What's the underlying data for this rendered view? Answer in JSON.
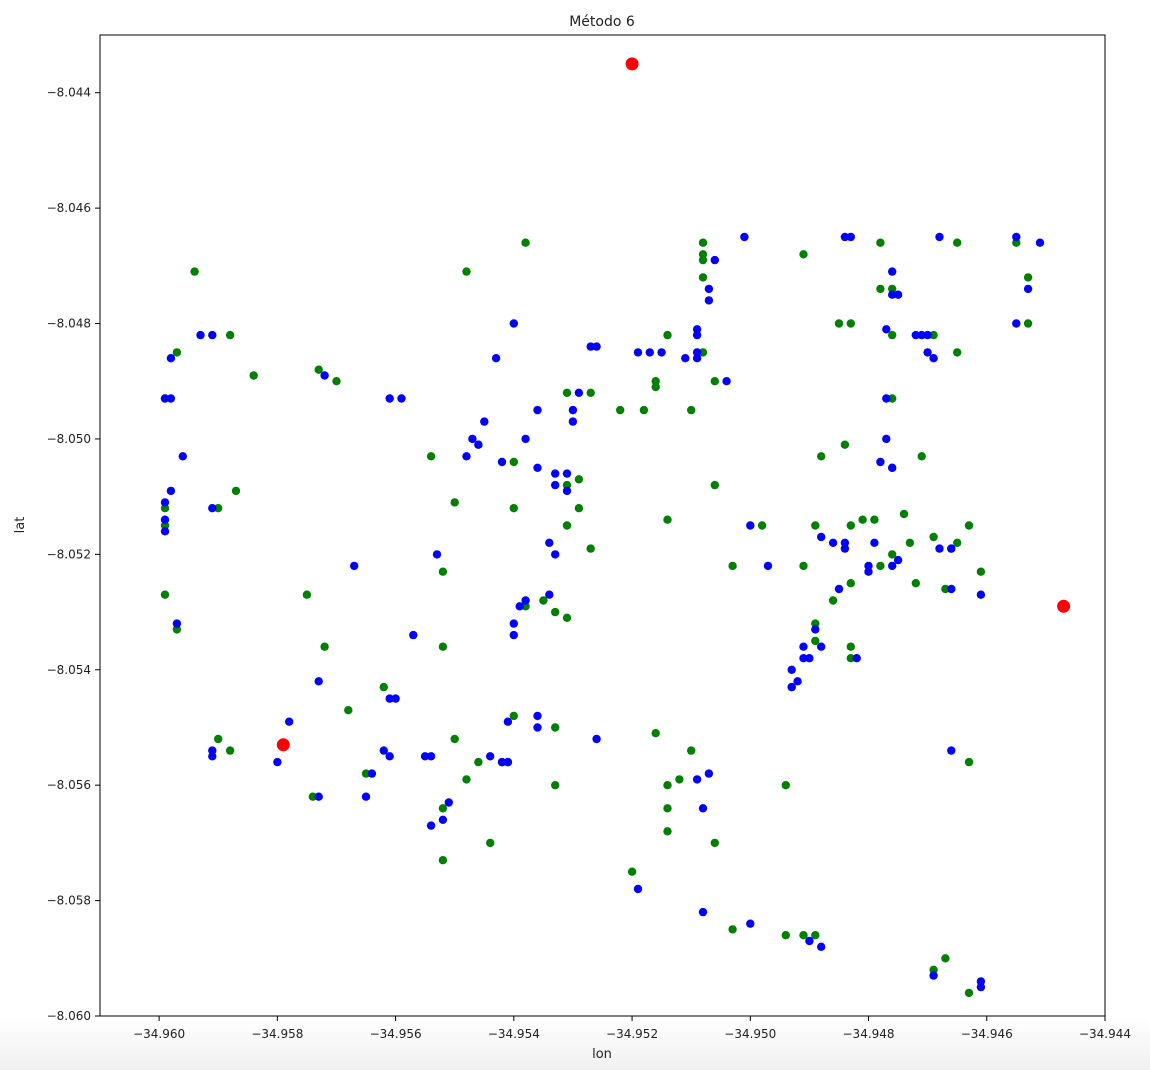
{
  "chart_data": {
    "type": "scatter",
    "title": "Método 6",
    "xlabel": "lon",
    "ylabel": "lat",
    "xlim": [
      -34.961,
      -34.944
    ],
    "ylim": [
      -8.06,
      -8.043
    ],
    "x_ticks": [
      -34.96,
      -34.958,
      -34.956,
      -34.954,
      -34.952,
      -34.95,
      -34.948,
      -34.946,
      -34.944
    ],
    "x_tick_labels": [
      "−34.960",
      "−34.958",
      "−34.956",
      "−34.954",
      "−34.952",
      "−34.950",
      "−34.948",
      "−34.946",
      "−34.944"
    ],
    "y_ticks": [
      -8.044,
      -8.046,
      -8.048,
      -8.05,
      -8.052,
      -8.054,
      -8.056,
      -8.058,
      -8.06
    ],
    "y_tick_labels": [
      "−8.044",
      "−8.046",
      "−8.048",
      "−8.050",
      "−8.052",
      "−8.054",
      "−8.056",
      "−8.058",
      "−8.060"
    ],
    "grid": false,
    "legend": "none",
    "series": [
      {
        "color": "#008000",
        "points": [
          [
            -34.9594,
            -8.0471
          ],
          [
            -34.9597,
            -8.0485
          ],
          [
            -34.9599,
            -8.0493
          ],
          [
            -34.9588,
            -8.0482
          ],
          [
            -34.9584,
            -8.0489
          ],
          [
            -34.9587,
            -8.0509
          ],
          [
            -34.9599,
            -8.0512
          ],
          [
            -34.9599,
            -8.0515
          ],
          [
            -34.959,
            -8.0512
          ],
          [
            -34.9599,
            -8.0527
          ],
          [
            -34.9597,
            -8.0533
          ],
          [
            -34.959,
            -8.0552
          ],
          [
            -34.9588,
            -8.0554
          ],
          [
            -34.9579,
            -8.0553
          ],
          [
            -34.9575,
            -8.0527
          ],
          [
            -34.9574,
            -8.0562
          ],
          [
            -34.9573,
            -8.0488
          ],
          [
            -34.957,
            -8.049
          ],
          [
            -34.9572,
            -8.0536
          ],
          [
            -34.9568,
            -8.0547
          ],
          [
            -34.9562,
            -8.0543
          ],
          [
            -34.9565,
            -8.0558
          ],
          [
            -34.9554,
            -8.0503
          ],
          [
            -34.9552,
            -8.0523
          ],
          [
            -34.9552,
            -8.0536
          ],
          [
            -34.955,
            -8.0511
          ],
          [
            -34.9552,
            -8.0564
          ],
          [
            -34.9552,
            -8.0573
          ],
          [
            -34.955,
            -8.0552
          ],
          [
            -34.9548,
            -8.0559
          ],
          [
            -34.9546,
            -8.0556
          ],
          [
            -34.9548,
            -8.0471
          ],
          [
            -34.9546,
            -8.0501
          ],
          [
            -34.9544,
            -8.057
          ],
          [
            -34.9542,
            -8.0556
          ],
          [
            -34.9541,
            -8.0556
          ],
          [
            -34.954,
            -8.0512
          ],
          [
            -34.954,
            -8.0504
          ],
          [
            -34.9538,
            -8.0466
          ],
          [
            -34.9538,
            -8.0529
          ],
          [
            -34.954,
            -8.0548
          ],
          [
            -34.9533,
            -8.053
          ],
          [
            -34.9535,
            -8.0528
          ],
          [
            -34.9533,
            -8.055
          ],
          [
            -34.9531,
            -8.0492
          ],
          [
            -34.9531,
            -8.0508
          ],
          [
            -34.9531,
            -8.0515
          ],
          [
            -34.9531,
            -8.0531
          ],
          [
            -34.9533,
            -8.056
          ],
          [
            -34.9529,
            -8.0507
          ],
          [
            -34.9529,
            -8.0512
          ],
          [
            -34.9527,
            -8.0492
          ],
          [
            -34.9527,
            -8.0519
          ],
          [
            -34.9522,
            -8.0495
          ],
          [
            -34.9518,
            -8.0495
          ],
          [
            -34.952,
            -8.0575
          ],
          [
            -34.9516,
            -8.0491
          ],
          [
            -34.9516,
            -8.049
          ],
          [
            -34.9514,
            -8.0482
          ],
          [
            -34.9514,
            -8.0514
          ],
          [
            -34.9516,
            -8.0551
          ],
          [
            -34.9514,
            -8.056
          ],
          [
            -34.9514,
            -8.0564
          ],
          [
            -34.9514,
            -8.0568
          ],
          [
            -34.9512,
            -8.0559
          ],
          [
            -34.951,
            -8.0495
          ],
          [
            -34.951,
            -8.0554
          ],
          [
            -34.9508,
            -8.0466
          ],
          [
            -34.9508,
            -8.0468
          ],
          [
            -34.9508,
            -8.0469
          ],
          [
            -34.9508,
            -8.0472
          ],
          [
            -34.9508,
            -8.0485
          ],
          [
            -34.9506,
            -8.049
          ],
          [
            -34.9506,
            -8.0508
          ],
          [
            -34.9506,
            -8.057
          ],
          [
            -34.9503,
            -8.0522
          ],
          [
            -34.9503,
            -8.0585
          ],
          [
            -34.9498,
            -8.0515
          ],
          [
            -34.9494,
            -8.056
          ],
          [
            -34.9494,
            -8.0586
          ],
          [
            -34.9491,
            -8.0468
          ],
          [
            -34.9493,
            -8.0543
          ],
          [
            -34.9491,
            -8.0522
          ],
          [
            -34.9489,
            -8.0515
          ],
          [
            -34.9489,
            -8.0532
          ],
          [
            -34.9489,
            -8.0535
          ],
          [
            -34.9491,
            -8.0586
          ],
          [
            -34.9489,
            -8.0586
          ],
          [
            -34.9488,
            -8.0503
          ],
          [
            -34.9486,
            -8.0528
          ],
          [
            -34.9485,
            -8.048
          ],
          [
            -34.9484,
            -8.0501
          ],
          [
            -34.9483,
            -8.048
          ],
          [
            -34.9483,
            -8.0515
          ],
          [
            -34.9483,
            -8.0525
          ],
          [
            -34.9483,
            -8.0536
          ],
          [
            -34.9483,
            -8.0538
          ],
          [
            -34.9481,
            -8.0514
          ],
          [
            -34.9479,
            -8.0514
          ],
          [
            -34.9478,
            -8.0466
          ],
          [
            -34.9478,
            -8.0474
          ],
          [
            -34.9478,
            -8.0522
          ],
          [
            -34.9476,
            -8.0474
          ],
          [
            -34.9476,
            -8.0482
          ],
          [
            -34.9476,
            -8.0493
          ],
          [
            -34.9476,
            -8.0505
          ],
          [
            -34.9476,
            -8.052
          ],
          [
            -34.9474,
            -8.0513
          ],
          [
            -34.9473,
            -8.0518
          ],
          [
            -34.9472,
            -8.0525
          ],
          [
            -34.9471,
            -8.0503
          ],
          [
            -34.9469,
            -8.0482
          ],
          [
            -34.9469,
            -8.0517
          ],
          [
            -34.9469,
            -8.0592
          ],
          [
            -34.9467,
            -8.0526
          ],
          [
            -34.9467,
            -8.059
          ],
          [
            -34.9466,
            -8.0519
          ],
          [
            -34.9465,
            -8.0518
          ],
          [
            -34.9465,
            -8.0466
          ],
          [
            -34.9465,
            -8.0485
          ],
          [
            -34.9463,
            -8.0515
          ],
          [
            -34.9463,
            -8.0556
          ],
          [
            -34.9463,
            -8.0596
          ],
          [
            -34.9461,
            -8.0523
          ],
          [
            -34.9455,
            -8.0466
          ],
          [
            -34.9453,
            -8.0472
          ],
          [
            -34.9453,
            -8.048
          ]
        ]
      },
      {
        "color": "#0000ff",
        "points": [
          [
            -34.9599,
            -8.0493
          ],
          [
            -34.9598,
            -8.0486
          ],
          [
            -34.9598,
            -8.0493
          ],
          [
            -34.9596,
            -8.0503
          ],
          [
            -34.9598,
            -8.0509
          ],
          [
            -34.9599,
            -8.0511
          ],
          [
            -34.9599,
            -8.0514
          ],
          [
            -34.9599,
            -8.0516
          ],
          [
            -34.9593,
            -8.0482
          ],
          [
            -34.9591,
            -8.0482
          ],
          [
            -34.9591,
            -8.0512
          ],
          [
            -34.9597,
            -8.0532
          ],
          [
            -34.9591,
            -8.0554
          ],
          [
            -34.9591,
            -8.0555
          ],
          [
            -34.958,
            -8.0556
          ],
          [
            -34.9578,
            -8.0549
          ],
          [
            -34.9573,
            -8.0562
          ],
          [
            -34.9573,
            -8.0542
          ],
          [
            -34.9572,
            -8.0489
          ],
          [
            -34.9567,
            -8.0522
          ],
          [
            -34.9565,
            -8.0562
          ],
          [
            -34.9564,
            -8.0558
          ],
          [
            -34.9562,
            -8.0554
          ],
          [
            -34.9561,
            -8.0555
          ],
          [
            -34.9561,
            -8.0545
          ],
          [
            -34.9561,
            -8.0493
          ],
          [
            -34.956,
            -8.0545
          ],
          [
            -34.9559,
            -8.0493
          ],
          [
            -34.9557,
            -8.0534
          ],
          [
            -34.9555,
            -8.0555
          ],
          [
            -34.9554,
            -8.0567
          ],
          [
            -34.9554,
            -8.0555
          ],
          [
            -34.9553,
            -8.052
          ],
          [
            -34.9552,
            -8.0566
          ],
          [
            -34.9551,
            -8.0563
          ],
          [
            -34.9548,
            -8.0503
          ],
          [
            -34.9547,
            -8.05
          ],
          [
            -34.9546,
            -8.0501
          ],
          [
            -34.9545,
            -8.0497
          ],
          [
            -34.9544,
            -8.0555
          ],
          [
            -34.9543,
            -8.0486
          ],
          [
            -34.9542,
            -8.0504
          ],
          [
            -34.9542,
            -8.0556
          ],
          [
            -34.9541,
            -8.0556
          ],
          [
            -34.9541,
            -8.0549
          ],
          [
            -34.954,
            -8.048
          ],
          [
            -34.954,
            -8.0532
          ],
          [
            -34.954,
            -8.0534
          ],
          [
            -34.9539,
            -8.0529
          ],
          [
            -34.9538,
            -8.0528
          ],
          [
            -34.9538,
            -8.05
          ],
          [
            -34.9536,
            -8.0548
          ],
          [
            -34.9536,
            -8.055
          ],
          [
            -34.9536,
            -8.0505
          ],
          [
            -34.9536,
            -8.0495
          ],
          [
            -34.9534,
            -8.0527
          ],
          [
            -34.9534,
            -8.0518
          ],
          [
            -34.9533,
            -8.052
          ],
          [
            -34.9533,
            -8.0506
          ],
          [
            -34.9533,
            -8.0508
          ],
          [
            -34.9531,
            -8.0506
          ],
          [
            -34.9531,
            -8.0509
          ],
          [
            -34.953,
            -8.0495
          ],
          [
            -34.953,
            -8.0497
          ],
          [
            -34.9529,
            -8.0492
          ],
          [
            -34.9527,
            -8.0484
          ],
          [
            -34.9526,
            -8.0484
          ],
          [
            -34.9526,
            -8.0552
          ],
          [
            -34.9519,
            -8.0578
          ],
          [
            -34.9519,
            -8.0485
          ],
          [
            -34.9517,
            -8.0485
          ],
          [
            -34.9515,
            -8.0485
          ],
          [
            -34.9511,
            -8.0486
          ],
          [
            -34.9509,
            -8.0485
          ],
          [
            -34.9509,
            -8.0486
          ],
          [
            -34.9509,
            -8.0481
          ],
          [
            -34.9509,
            -8.0482
          ],
          [
            -34.9509,
            -8.0559
          ],
          [
            -34.9508,
            -8.0564
          ],
          [
            -34.9508,
            -8.0582
          ],
          [
            -34.9507,
            -8.0476
          ],
          [
            -34.9507,
            -8.0474
          ],
          [
            -34.9507,
            -8.0558
          ],
          [
            -34.9506,
            -8.0469
          ],
          [
            -34.9504,
            -8.049
          ],
          [
            -34.9501,
            -8.0465
          ],
          [
            -34.95,
            -8.0515
          ],
          [
            -34.95,
            -8.0584
          ],
          [
            -34.9497,
            -8.0522
          ],
          [
            -34.9493,
            -8.0543
          ],
          [
            -34.9493,
            -8.054
          ],
          [
            -34.9492,
            -8.0542
          ],
          [
            -34.9491,
            -8.0538
          ],
          [
            -34.9491,
            -8.0536
          ],
          [
            -34.949,
            -8.0538
          ],
          [
            -34.949,
            -8.0587
          ],
          [
            -34.9489,
            -8.0533
          ],
          [
            -34.9488,
            -8.0517
          ],
          [
            -34.9488,
            -8.0536
          ],
          [
            -34.9488,
            -8.0588
          ],
          [
            -34.9486,
            -8.0518
          ],
          [
            -34.9485,
            -8.0526
          ],
          [
            -34.9484,
            -8.0518
          ],
          [
            -34.9484,
            -8.0519
          ],
          [
            -34.9484,
            -8.0465
          ],
          [
            -34.9483,
            -8.0465
          ],
          [
            -34.9482,
            -8.0538
          ],
          [
            -34.948,
            -8.0522
          ],
          [
            -34.948,
            -8.0523
          ],
          [
            -34.9479,
            -8.0518
          ],
          [
            -34.9478,
            -8.0504
          ],
          [
            -34.9477,
            -8.05
          ],
          [
            -34.9477,
            -8.0481
          ],
          [
            -34.9477,
            -8.0493
          ],
          [
            -34.9476,
            -8.0505
          ],
          [
            -34.9476,
            -8.0522
          ],
          [
            -34.9476,
            -8.0471
          ],
          [
            -34.9476,
            -8.0475
          ],
          [
            -34.9475,
            -8.0475
          ],
          [
            -34.9475,
            -8.0521
          ],
          [
            -34.9472,
            -8.0482
          ],
          [
            -34.9471,
            -8.0482
          ],
          [
            -34.947,
            -8.0482
          ],
          [
            -34.947,
            -8.0485
          ],
          [
            -34.9469,
            -8.0486
          ],
          [
            -34.9469,
            -8.0593
          ],
          [
            -34.9468,
            -8.0519
          ],
          [
            -34.9468,
            -8.0465
          ],
          [
            -34.9466,
            -8.0519
          ],
          [
            -34.9466,
            -8.0554
          ],
          [
            -34.9466,
            -8.0526
          ],
          [
            -34.9461,
            -8.0594
          ],
          [
            -34.9461,
            -8.0595
          ],
          [
            -34.9461,
            -8.0527
          ],
          [
            -34.9455,
            -8.0465
          ],
          [
            -34.9455,
            -8.048
          ],
          [
            -34.9453,
            -8.0474
          ],
          [
            -34.9451,
            -8.0466
          ]
        ]
      },
      {
        "color": "#ff0000",
        "points": [
          [
            -34.952,
            -8.0435
          ],
          [
            -34.9579,
            -8.0553
          ],
          [
            -34.9447,
            -8.0529
          ]
        ]
      }
    ]
  }
}
